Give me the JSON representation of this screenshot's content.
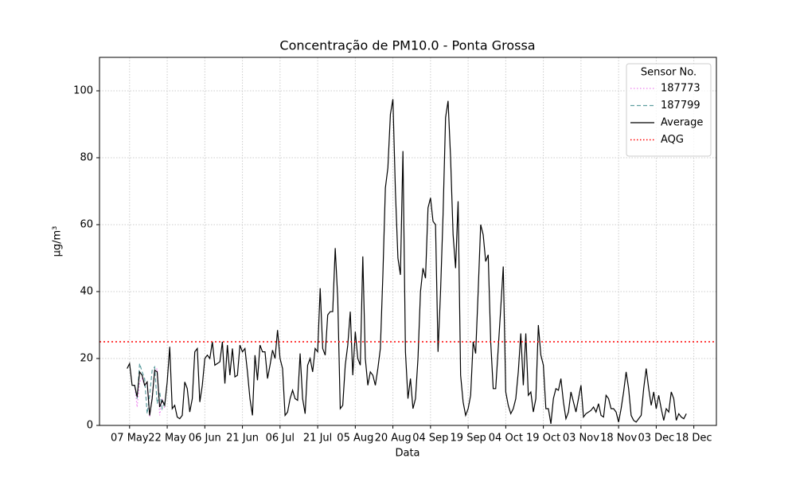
{
  "chart_data": {
    "type": "line",
    "title": "Concentração de PM10.0 - Ponta Grossa",
    "xlabel": "Data",
    "ylabel": "μg/m³",
    "legend_title": "Sensor No.",
    "legend": "upper right",
    "grid": true,
    "xlim": [
      "25 Apr",
      "27 Dec"
    ],
    "xticks": [
      "07 May",
      "22 May",
      "06 Jun",
      "21 Jun",
      "06 Jul",
      "21 Jul",
      "05 Aug",
      "20 Aug",
      "04 Sep",
      "19 Sep",
      "04 Oct",
      "19 Oct",
      "03 Nov",
      "18 Nov",
      "03 Dec",
      "18 Dec"
    ],
    "ylim": [
      0,
      110
    ],
    "yticks": [
      0,
      20,
      40,
      60,
      80,
      100
    ],
    "series": [
      {
        "name": "187773",
        "color": "violet",
        "style": "dotted",
        "x": [
          "09 May",
          "10 May",
          "11 May",
          "12 May",
          "13 May",
          "14 May",
          "15 May",
          "16 May",
          "17 May",
          "18 May",
          "19 May",
          "20 May",
          "21 May"
        ],
        "values": [
          12,
          5.5,
          13,
          14,
          12,
          12.5,
          2.5,
          9,
          16,
          17,
          3,
          8,
          5
        ]
      },
      {
        "name": "187799",
        "color": "cadetblue",
        "style": "dashed",
        "x": [
          "09 May",
          "10 May",
          "11 May",
          "12 May",
          "13 May",
          "14 May",
          "15 May",
          "16 May",
          "17 May",
          "18 May",
          "19 May",
          "20 May",
          "21 May"
        ],
        "values": [
          12,
          8,
          18.5,
          16,
          14,
          3.5,
          9,
          16.5,
          17.5,
          6.5,
          10,
          5,
          7
        ]
      },
      {
        "name": "Average",
        "color": "black",
        "style": "solid",
        "x": [
          "06 May",
          "07 May",
          "08 May",
          "09 May",
          "10 May",
          "11 May",
          "12 May",
          "13 May",
          "14 May",
          "15 May",
          "16 May",
          "17 May",
          "18 May",
          "19 May",
          "20 May",
          "21 May",
          "22 May",
          "23 May",
          "24 May",
          "25 May",
          "26 May",
          "27 May",
          "28 May",
          "29 May",
          "30 May",
          "31 May",
          "01 Jun",
          "02 Jun",
          "03 Jun",
          "04 Jun",
          "05 Jun",
          "06 Jun",
          "07 Jun",
          "08 Jun",
          "09 Jun",
          "10 Jun",
          "11 Jun",
          "12 Jun",
          "13 Jun",
          "14 Jun",
          "15 Jun",
          "16 Jun",
          "17 Jun",
          "18 Jun",
          "19 Jun",
          "20 Jun",
          "21 Jun",
          "22 Jun",
          "23 Jun",
          "24 Jun",
          "25 Jun",
          "26 Jun",
          "27 Jun",
          "28 Jun",
          "29 Jun",
          "30 Jun",
          "01 Jul",
          "02 Jul",
          "03 Jul",
          "04 Jul",
          "05 Jul",
          "06 Jul",
          "07 Jul",
          "08 Jul",
          "09 Jul",
          "10 Jul",
          "11 Jul",
          "12 Jul",
          "13 Jul",
          "14 Jul",
          "15 Jul",
          "16 Jul",
          "17 Jul",
          "18 Jul",
          "19 Jul",
          "20 Jul",
          "21 Jul",
          "22 Jul",
          "23 Jul",
          "24 Jul",
          "25 Jul",
          "26 Jul",
          "27 Jul",
          "28 Jul",
          "29 Jul",
          "30 Jul",
          "31 Jul",
          "01 Aug",
          "02 Aug",
          "03 Aug",
          "04 Aug",
          "05 Aug",
          "06 Aug",
          "07 Aug",
          "08 Aug",
          "09 Aug",
          "10 Aug",
          "11 Aug",
          "12 Aug",
          "13 Aug",
          "14 Aug",
          "15 Aug",
          "16 Aug",
          "17 Aug",
          "18 Aug",
          "19 Aug",
          "20 Aug",
          "21 Aug",
          "22 Aug",
          "23 Aug",
          "24 Aug",
          "25 Aug",
          "26 Aug",
          "27 Aug",
          "28 Aug",
          "29 Aug",
          "30 Aug",
          "31 Aug",
          "01 Sep",
          "02 Sep",
          "03 Sep",
          "04 Sep",
          "05 Sep",
          "06 Sep",
          "07 Sep",
          "08 Sep",
          "09 Sep",
          "10 Sep",
          "11 Sep",
          "12 Sep",
          "13 Sep",
          "14 Sep",
          "15 Sep",
          "16 Sep",
          "17 Sep",
          "18 Sep",
          "19 Sep",
          "20 Sep",
          "21 Sep",
          "22 Sep",
          "23 Sep",
          "24 Sep",
          "25 Sep",
          "26 Sep",
          "27 Sep",
          "28 Sep",
          "29 Sep",
          "30 Sep",
          "01 Oct",
          "02 Oct",
          "03 Oct",
          "04 Oct",
          "05 Oct",
          "06 Oct",
          "07 Oct",
          "08 Oct",
          "09 Oct",
          "10 Oct",
          "11 Oct",
          "12 Oct",
          "13 Oct",
          "14 Oct",
          "15 Oct",
          "16 Oct",
          "17 Oct",
          "18 Oct",
          "19 Oct",
          "20 Oct",
          "21 Oct",
          "22 Oct",
          "23 Oct",
          "24 Oct",
          "25 Oct",
          "26 Oct",
          "27 Oct",
          "28 Oct",
          "29 Oct",
          "30 Oct",
          "31 Oct",
          "01 Nov",
          "02 Nov",
          "03 Nov",
          "04 Nov",
          "05 Nov",
          "06 Nov",
          "07 Nov",
          "08 Nov",
          "09 Nov",
          "10 Nov",
          "11 Nov",
          "12 Nov",
          "13 Nov",
          "14 Nov",
          "15 Nov",
          "16 Nov",
          "17 Nov",
          "18 Nov",
          "19 Nov",
          "20 Nov",
          "21 Nov",
          "22 Nov",
          "23 Nov",
          "24 Nov",
          "25 Nov",
          "26 Nov",
          "27 Nov",
          "28 Nov",
          "29 Nov",
          "30 Nov",
          "01 Dec",
          "02 Dec",
          "03 Dec",
          "04 Dec",
          "05 Dec",
          "06 Dec",
          "07 Dec",
          "08 Dec",
          "09 Dec",
          "10 Dec",
          "11 Dec",
          "12 Dec",
          "13 Dec",
          "14 Dec",
          "15 Dec"
        ],
        "values": [
          17,
          18.5,
          12,
          12,
          8.5,
          16,
          15,
          12,
          13,
          3,
          8,
          16.5,
          16,
          5.5,
          7.5,
          6,
          13,
          23.5,
          5,
          6,
          2.5,
          2,
          3,
          13,
          11,
          4,
          8,
          22,
          23,
          7,
          12,
          20,
          21,
          20,
          25,
          18,
          18.5,
          19,
          25,
          12.5,
          24,
          15,
          23,
          14.5,
          15,
          24,
          22,
          23,
          16,
          8,
          3,
          21,
          13.5,
          24,
          22,
          22,
          14,
          18,
          22.5,
          20,
          28.5,
          20,
          17,
          3,
          4,
          8,
          10.5,
          8,
          7.5,
          21.5,
          8,
          3.5,
          18,
          20,
          16,
          23,
          22,
          41,
          23,
          21,
          33,
          34,
          34,
          53,
          38,
          5,
          6,
          18,
          24,
          34,
          15,
          28,
          20,
          18,
          50.5,
          20,
          12,
          16,
          15,
          12,
          17,
          23,
          45,
          71,
          77,
          93,
          97.5,
          70,
          50,
          45,
          82,
          22,
          8,
          14,
          5,
          8,
          20,
          40,
          47,
          44,
          65,
          68,
          61,
          60,
          22,
          40,
          63,
          92,
          97,
          80,
          57,
          47,
          67,
          15,
          7,
          3,
          5,
          9,
          25,
          21.5,
          40,
          60,
          57,
          49,
          51,
          25,
          11,
          11,
          23,
          35,
          47.5,
          10,
          6,
          3.5,
          5,
          8,
          16,
          27.5,
          12,
          27.5,
          9,
          10,
          4,
          8,
          30,
          21,
          18,
          5,
          5,
          0.5,
          8,
          11,
          10.5,
          14,
          7,
          2,
          4,
          10,
          7,
          4,
          8,
          12,
          2.5,
          3.5,
          4,
          4.5,
          5.5,
          4,
          6.5,
          3,
          2.5,
          9,
          8,
          5,
          5,
          4,
          1,
          5,
          10,
          16,
          11,
          3,
          1.5,
          1,
          2,
          3,
          11,
          17,
          11,
          6,
          10,
          5,
          9,
          5,
          1.5,
          5,
          4,
          10,
          8,
          1.5,
          3.5,
          2.5,
          2,
          3.5
        ]
      }
    ],
    "hlines": [
      {
        "name": "AQG",
        "value": 25,
        "color": "red",
        "style": "dotted"
      }
    ]
  }
}
